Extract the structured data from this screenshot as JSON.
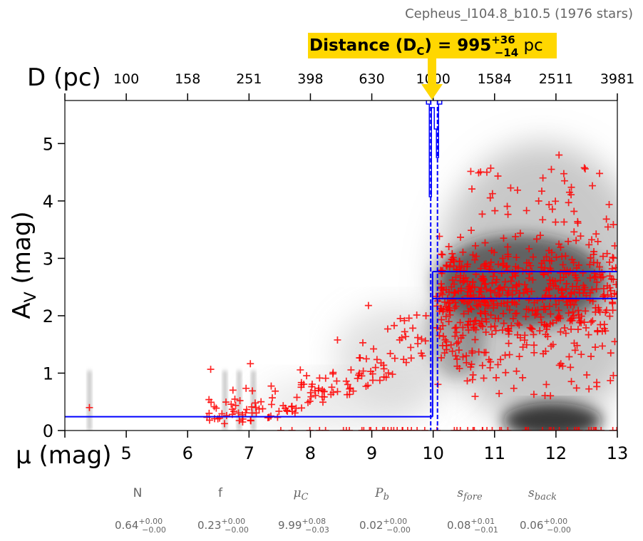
{
  "chart_data": {
    "type": "scatter",
    "title": "Cepheus_l104.8_b10.5 (1976 stars)",
    "xlabel": "μ (mag)",
    "ylabel": "AV (mag)",
    "x2label": "D (pc)",
    "xlim": [
      4,
      13
    ],
    "ylim": [
      0,
      5.75
    ],
    "x_ticks": [
      5,
      6,
      7,
      8,
      9,
      10,
      11,
      12,
      13
    ],
    "x_tick_labels": [
      "5",
      "6",
      "7",
      "8",
      "9",
      "10",
      "11",
      "12",
      "13"
    ],
    "x2_ticks": [
      5,
      6,
      7,
      8,
      9,
      10,
      11,
      12,
      13
    ],
    "x2_tick_labels": [
      "100",
      "158",
      "251",
      "398",
      "630",
      "1000",
      "1584",
      "2511",
      "3981"
    ],
    "y_ticks": [
      0,
      1,
      2,
      3,
      4,
      5
    ],
    "y_tick_labels": [
      "0",
      "1",
      "2",
      "3",
      "4",
      "5"
    ],
    "grid": false,
    "annotation": {
      "text_main": "Distance (D",
      "text_sub": "C",
      "text_eq": ") = 995",
      "sup": "+36",
      "sub": "−14",
      "unit": " pc",
      "bg_color": "#ffd700"
    },
    "model": {
      "mu_cloud": 9.99,
      "mu_cloud_lo": 9.96,
      "mu_cloud_hi": 10.07,
      "av_foreground": 0.24,
      "av_background_lower": 2.3,
      "av_background_upper": 2.77,
      "line_color": "#0000ff"
    },
    "star_color": "#ff0000",
    "parameters": [
      {
        "name": "N",
        "italic": false,
        "value": "0.64",
        "plus": "+0.00",
        "minus": "−0.00"
      },
      {
        "name": "f",
        "italic": false,
        "value": "0.23",
        "plus": "+0.00",
        "minus": "−0.00"
      },
      {
        "name": "μ",
        "sub": "C",
        "italic": true,
        "value": "9.99",
        "plus": "+0.08",
        "minus": "−0.03"
      },
      {
        "name": "P",
        "sub": "b",
        "italic": true,
        "value": "0.02",
        "plus": "+0.00",
        "minus": "−0.00"
      },
      {
        "name": "s",
        "sub": "fore",
        "italic": true,
        "value": "0.08",
        "plus": "+0.01",
        "minus": "−0.01"
      },
      {
        "name": "s",
        "sub": "back",
        "italic": true,
        "value": "0.06",
        "plus": "+0.00",
        "minus": "−0.00"
      }
    ]
  }
}
